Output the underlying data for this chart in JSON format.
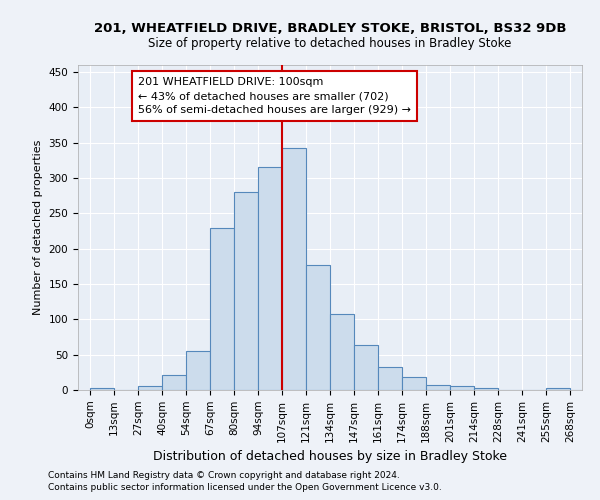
{
  "title1": "201, WHEATFIELD DRIVE, BRADLEY STOKE, BRISTOL, BS32 9DB",
  "title2": "Size of property relative to detached houses in Bradley Stoke",
  "xlabel": "Distribution of detached houses by size in Bradley Stoke",
  "ylabel": "Number of detached properties",
  "bar_labels": [
    "0sqm",
    "13sqm",
    "27sqm",
    "40sqm",
    "54sqm",
    "67sqm",
    "80sqm",
    "94sqm",
    "107sqm",
    "121sqm",
    "134sqm",
    "147sqm",
    "161sqm",
    "174sqm",
    "188sqm",
    "201sqm",
    "214sqm",
    "228sqm",
    "241sqm",
    "255sqm",
    "268sqm"
  ],
  "bar_values": [
    3,
    0,
    6,
    21,
    55,
    230,
    280,
    315,
    343,
    177,
    108,
    63,
    32,
    18,
    7,
    5,
    3,
    0,
    0,
    3,
    0
  ],
  "bar_color": "#ccdcec",
  "bar_edge_color": "#5588bb",
  "vline_x_index": 7.5,
  "vline_color": "#cc0000",
  "annotation_title": "201 WHEATFIELD DRIVE: 100sqm",
  "annotation_line1": "← 43% of detached houses are smaller (702)",
  "annotation_line2": "56% of semi-detached houses are larger (929) →",
  "annotation_box_color": "#ffffff",
  "annotation_box_edge": "#cc0000",
  "footnote1": "Contains HM Land Registry data © Crown copyright and database right 2024.",
  "footnote2": "Contains public sector information licensed under the Open Government Licence v3.0.",
  "bin_width": 13,
  "ylim": [
    0,
    460
  ],
  "yticks": [
    0,
    50,
    100,
    150,
    200,
    250,
    300,
    350,
    400,
    450
  ],
  "bg_color": "#eef2f8",
  "axes_bg_color": "#e8eef6",
  "grid_color": "#ffffff",
  "title1_fontsize": 9.5,
  "title2_fontsize": 8.5,
  "xlabel_fontsize": 9,
  "ylabel_fontsize": 8,
  "tick_fontsize": 7.5,
  "footnote_fontsize": 6.5,
  "annot_fontsize": 8
}
